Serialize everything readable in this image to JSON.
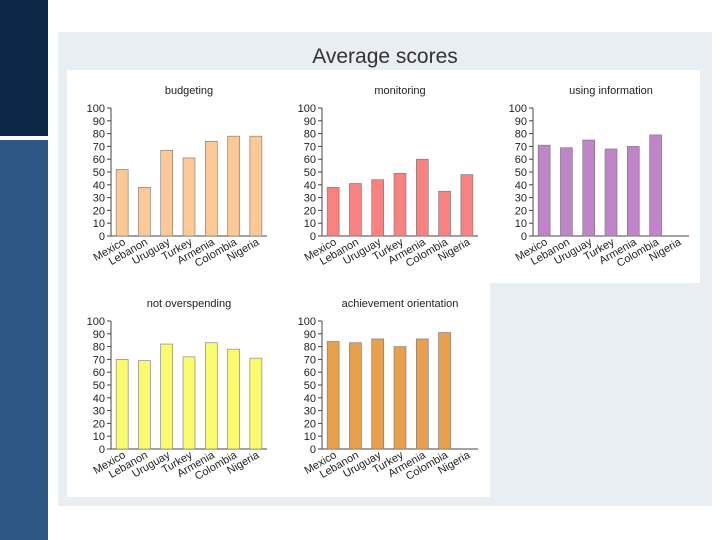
{
  "title": "Average scores",
  "chart_data": [
    {
      "type": "bar",
      "title": "budgeting",
      "categories": [
        "Mexico",
        "Lebanon",
        "Uruguay",
        "Turkey",
        "Armenia",
        "Colombia",
        "Nigeria"
      ],
      "values": [
        52,
        38,
        67,
        61,
        74,
        78,
        78
      ],
      "color": "#fcc896",
      "ylim": [
        0,
        100
      ],
      "yticks": [
        0,
        10,
        20,
        30,
        40,
        50,
        60,
        70,
        80,
        90,
        100
      ],
      "grid": false
    },
    {
      "type": "bar",
      "title": "monitoring",
      "categories": [
        "Mexico",
        "Lebanon",
        "Uruguay",
        "Turkey",
        "Armenia",
        "Colombia",
        "Nigeria"
      ],
      "values": [
        38,
        41,
        44,
        49,
        60,
        35,
        48
      ],
      "color": "#f88282",
      "ylim": [
        0,
        100
      ],
      "yticks": [
        0,
        10,
        20,
        30,
        40,
        50,
        60,
        70,
        80,
        90,
        100
      ],
      "grid": false
    },
    {
      "type": "bar",
      "title": "using information",
      "categories": [
        "Mexico",
        "Lebanon",
        "Uruguay",
        "Turkey",
        "Armenia",
        "Colombia",
        "Nigeria"
      ],
      "values": [
        71,
        69,
        75,
        68,
        70,
        79,
        null
      ],
      "color": "#c084c8",
      "ylim": [
        0,
        100
      ],
      "yticks": [
        0,
        10,
        20,
        30,
        40,
        50,
        60,
        70,
        80,
        90,
        100
      ],
      "grid": false
    },
    {
      "type": "bar",
      "title": "not overspending",
      "categories": [
        "Mexico",
        "Lebanon",
        "Uruguay",
        "Turkey",
        "Armenia",
        "Colombia",
        "Nigeria"
      ],
      "values": [
        70,
        69,
        82,
        72,
        83,
        78,
        71
      ],
      "color": "#fafa6e",
      "ylim": [
        0,
        100
      ],
      "yticks": [
        0,
        10,
        20,
        30,
        40,
        50,
        60,
        70,
        80,
        90,
        100
      ],
      "grid": false
    },
    {
      "type": "bar",
      "title": "achievement orientation",
      "categories": [
        "Mexico",
        "Lebanon",
        "Uruguay",
        "Turkey",
        "Armenia",
        "Colombia",
        "Nigeria"
      ],
      "values": [
        84,
        83,
        86,
        80,
        86,
        91,
        null
      ],
      "color": "#e8a04c",
      "ylim": [
        0,
        100
      ],
      "yticks": [
        0,
        10,
        20,
        30,
        40,
        50,
        60,
        70,
        80,
        90,
        100
      ],
      "grid": false
    }
  ]
}
